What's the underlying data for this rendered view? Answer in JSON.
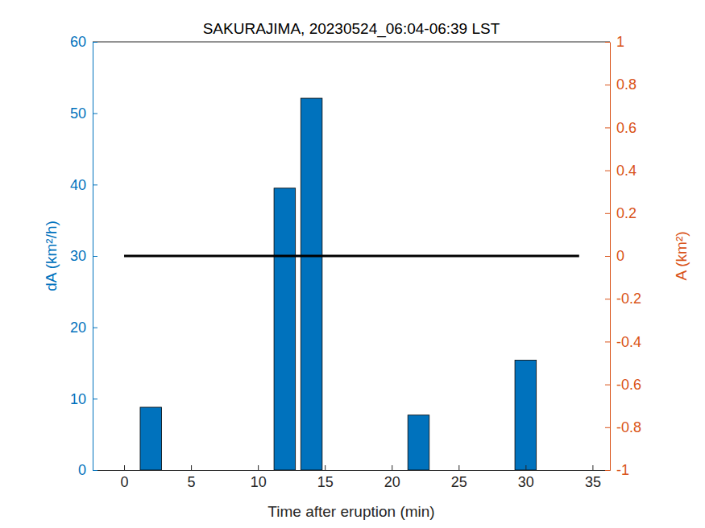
{
  "chart_data": {
    "type": "bar",
    "title": "SAKURAJIMA, 20230524_06:04-06:39 LST",
    "x_label": "Time after eruption (min)",
    "y_label": "dA (km²/h)",
    "y2_label": "A (km²)",
    "xlim": [
      -2.35,
      36.3
    ],
    "xticks": [
      0,
      5,
      10,
      15,
      20,
      25,
      30,
      35
    ],
    "ylim": [
      0,
      60
    ],
    "yticks": [
      0,
      10,
      20,
      30,
      40,
      50,
      60
    ],
    "y2lim": [
      -1,
      1
    ],
    "y2ticks": [
      -1,
      -0.8,
      -0.6,
      -0.4,
      -0.2,
      0,
      0.2,
      0.4,
      0.6,
      0.8,
      1
    ],
    "grid": false,
    "series": [
      {
        "type": "bar",
        "color": "#0072bd",
        "x": [
          2,
          12,
          14,
          22,
          30
        ],
        "values": [
          8.8,
          39.5,
          52.1,
          7.7,
          15.4
        ]
      },
      {
        "type": "line",
        "color": "#000000",
        "axis": "y2",
        "x": [
          0,
          34
        ],
        "values": [
          0,
          0
        ]
      }
    ]
  }
}
